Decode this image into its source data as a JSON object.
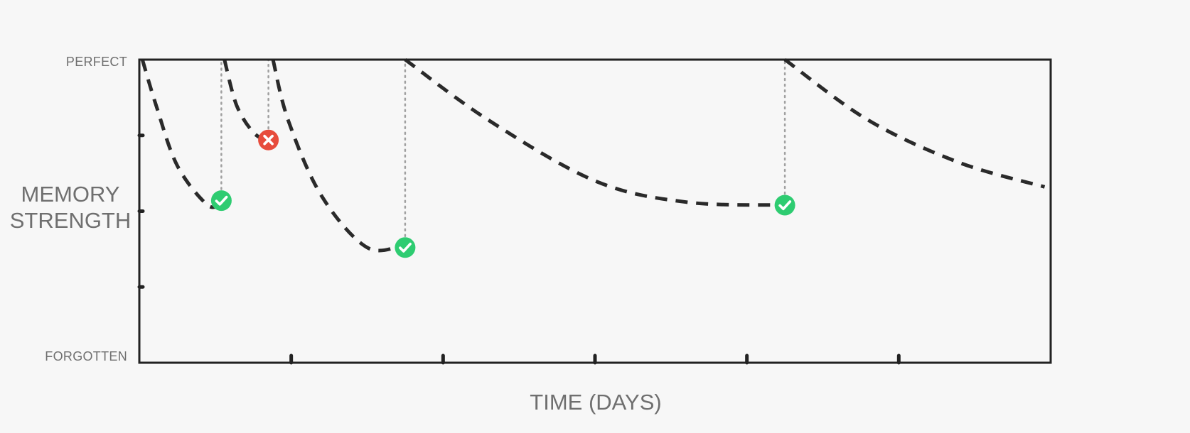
{
  "chart_data": {
    "type": "line",
    "title": "",
    "xlabel": "TIME (DAYS)",
    "ylabel_lines": [
      "MEMORY",
      "STRENGTH"
    ],
    "y_tick_labels": {
      "top": "PERFECT",
      "bottom": "FORGOTTEN"
    },
    "xlim": [
      0,
      6
    ],
    "ylim": [
      0,
      1
    ],
    "x_ticks": [
      1,
      2,
      3,
      4,
      5
    ],
    "y_ticks": [
      0.25,
      0.5,
      0.75
    ],
    "grid": false,
    "series": [
      {
        "points": [
          [
            0.02,
            1.0
          ],
          [
            0.11,
            0.85
          ],
          [
            0.25,
            0.65
          ],
          [
            0.45,
            0.52
          ],
          [
            0.54,
            0.53
          ]
        ]
      },
      {
        "points": [
          [
            0.56,
            1.0
          ],
          [
            0.64,
            0.85
          ],
          [
            0.75,
            0.76
          ],
          [
            0.85,
            0.73
          ]
        ]
      },
      {
        "points": [
          [
            0.88,
            1.0
          ],
          [
            0.98,
            0.8
          ],
          [
            1.2,
            0.55
          ],
          [
            1.5,
            0.38
          ],
          [
            1.75,
            0.39
          ]
        ]
      },
      {
        "points": [
          [
            1.75,
            1.0
          ],
          [
            2.3,
            0.8
          ],
          [
            3.0,
            0.6
          ],
          [
            3.6,
            0.53
          ],
          [
            4.25,
            0.52
          ]
        ]
      },
      {
        "points": [
          [
            4.25,
            1.0
          ],
          [
            4.8,
            0.8
          ],
          [
            5.4,
            0.66
          ],
          [
            5.96,
            0.58
          ]
        ]
      }
    ],
    "reviews": [
      {
        "x": 0.54,
        "y": 0.535,
        "result": "correct"
      },
      {
        "x": 0.85,
        "y": 0.735,
        "result": "incorrect"
      },
      {
        "x": 1.75,
        "y": 0.38,
        "result": "correct"
      },
      {
        "x": 4.25,
        "y": 0.52,
        "result": "correct"
      }
    ],
    "colors": {
      "curve": "#2a2a2a",
      "axis": "#222222",
      "guide": "#a0a0a0",
      "correct": "#2ecc71",
      "incorrect": "#e74c3c"
    }
  }
}
